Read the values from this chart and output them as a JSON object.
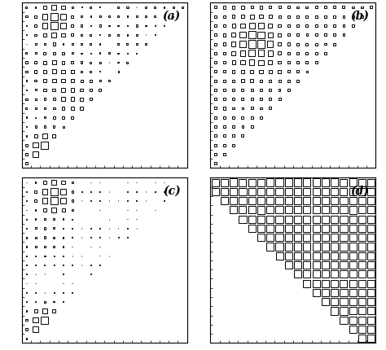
{
  "label_a": "(a)",
  "label_b": "(b)",
  "label_c": "(c)",
  "label_d": "(d)",
  "N": 18,
  "background_color": "#ffffff"
}
